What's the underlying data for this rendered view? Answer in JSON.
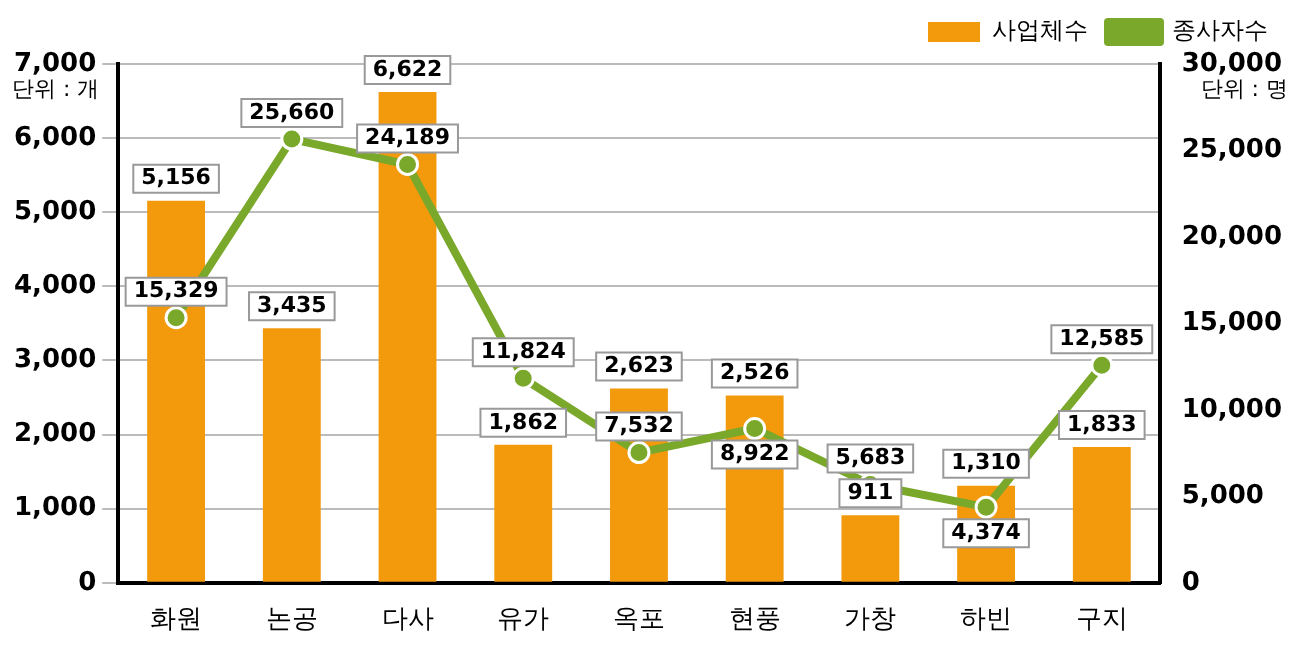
{
  "chart_data": {
    "type": "bar",
    "categories": [
      "화원",
      "논공",
      "다사",
      "유가",
      "옥포",
      "현풍",
      "가창",
      "하빈",
      "구지"
    ],
    "series": [
      {
        "name": "사업체수",
        "color": "#f29a0c",
        "values": [
          5156,
          3435,
          6622,
          1862,
          2623,
          2526,
          911,
          1310,
          1833
        ],
        "value_labels": [
          "5,156",
          "3,435",
          "6,622",
          "1,862",
          "2,623",
          "2,526",
          "911",
          "1,310",
          "1,833"
        ]
      },
      {
        "name": "종사자수",
        "type": "line",
        "axis": "y2",
        "color": "#7aa82a",
        "values": [
          15329,
          25660,
          24189,
          11824,
          7532,
          8922,
          5683,
          4374,
          12585
        ],
        "value_labels": [
          "15,329",
          "25,660",
          "24,189",
          "11,824",
          "7,532",
          "8,922",
          "5,683",
          "4,374",
          "12,585"
        ]
      }
    ],
    "ylim": [
      0,
      7000
    ],
    "yticks": [
      0,
      {
        "value": 1000,
        "label": "1,000"
      },
      {
        "value": 2000,
        "label": "2,000"
      },
      {
        "value": 3000,
        "label": "3,000"
      },
      {
        "value": 4000,
        "label": "4,000"
      },
      {
        "value": 5000,
        "label": "5,000"
      },
      {
        "value": 6000,
        "label": "6,000"
      },
      {
        "value": 7000,
        "label": "7,000"
      }
    ],
    "y2lim": [
      0,
      30000
    ],
    "y2ticks": [
      0,
      {
        "value": 5000,
        "label": "5,000"
      },
      {
        "value": 10000,
        "label": "10,000"
      },
      {
        "value": 15000,
        "label": "15,000"
      },
      {
        "value": 20000,
        "label": "20,000"
      },
      {
        "value": 25000,
        "label": "25,000"
      },
      {
        "value": 30000,
        "label": "30,000"
      }
    ],
    "annotations": [
      "단위 : 개",
      "단위 : 명"
    ],
    "grid": "y",
    "legend": "top right",
    "marker": "circle"
  }
}
